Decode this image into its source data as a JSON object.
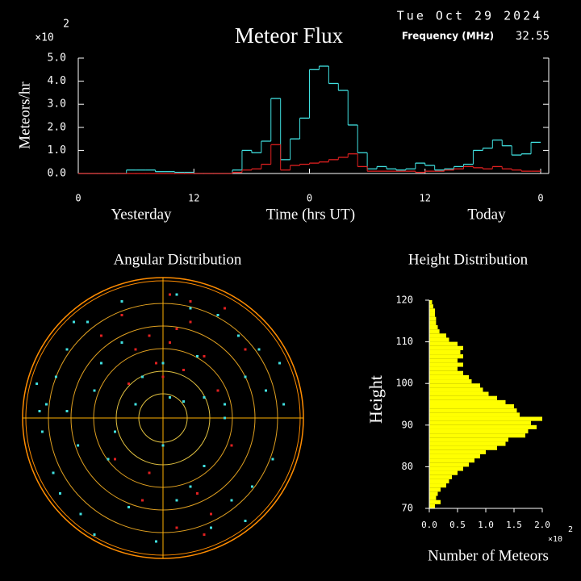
{
  "chart_data": [
    {
      "type": "step",
      "title": "Meteor Flux",
      "date": "Tue Oct 29 2024",
      "frequency_label": "Frequency (MHz)",
      "frequency": 32.55,
      "multiplier": "×10",
      "exponent": 2,
      "y_label": "Meteors/hr",
      "x_label": "Time (hrs UT)",
      "day_labels": [
        "Yesterday",
        "Today"
      ],
      "x": [
        0,
        1,
        2,
        3,
        4,
        5,
        6,
        7,
        8,
        9,
        10,
        11,
        12,
        13,
        14,
        15,
        16,
        17,
        18,
        19,
        20,
        21,
        22,
        23,
        24,
        25,
        26,
        27,
        28,
        29,
        30,
        31,
        32,
        33,
        34,
        35,
        36,
        37,
        38,
        39,
        40,
        41,
        42,
        43,
        44,
        45,
        46,
        47
      ],
      "series": [
        {
          "color": "#40e0e0",
          "values": [
            0,
            0,
            0,
            0,
            0,
            0.15,
            0.15,
            0.15,
            0.08,
            0.08,
            0.05,
            0.05,
            0,
            0,
            0,
            0,
            0.15,
            1.0,
            0.9,
            1.4,
            3.25,
            0.6,
            1.5,
            2.4,
            4.5,
            4.65,
            3.9,
            3.6,
            2.1,
            0.9,
            0.2,
            0.3,
            0.2,
            0.15,
            0.2,
            0.45,
            0.35,
            0.15,
            0.2,
            0.3,
            0.4,
            1.0,
            1.1,
            1.45,
            1.2,
            0.8,
            0.85,
            1.35
          ]
        },
        {
          "color": "#e02020",
          "values": [
            0,
            0,
            0,
            0,
            0,
            0,
            0,
            0,
            0,
            0,
            0,
            0,
            0,
            0,
            0,
            0,
            0.05,
            0.15,
            0.2,
            0.4,
            1.25,
            0.15,
            0.35,
            0.4,
            0.45,
            0.5,
            0.6,
            0.7,
            0.85,
            0.3,
            0.1,
            0.1,
            0.1,
            0.1,
            0.1,
            0.05,
            0.1,
            0.1,
            0.15,
            0.2,
            0.3,
            0.25,
            0.2,
            0.3,
            0.2,
            0.15,
            0.1,
            0.1
          ]
        }
      ],
      "xlim": [
        0,
        48
      ],
      "xticks": [
        0,
        12,
        {
          "value": 24,
          "label": "0"
        },
        {
          "value": 36,
          "label": "12"
        },
        {
          "value": 48,
          "label": "0"
        }
      ],
      "ylim": [
        0,
        5
      ],
      "yticks": [
        {
          "value": 0,
          "label": "0.0"
        },
        {
          "value": 1,
          "label": "1.0"
        },
        {
          "value": 2,
          "label": "2.0"
        },
        {
          "value": 3,
          "label": "3.0"
        },
        {
          "value": 4,
          "label": "4.0"
        },
        {
          "value": 5,
          "label": "5.0"
        }
      ]
    },
    {
      "type": "polar-scatter",
      "title": "Angular Distribution",
      "xlim": [
        -1,
        1
      ],
      "ylim": [
        -1,
        1
      ],
      "series": [
        {
          "color": "#40e0e0",
          "x": [
            -0.85,
            -0.78,
            -0.9,
            -0.7,
            -0.62,
            -0.55,
            -0.8,
            -0.45,
            -0.3,
            -0.2,
            -0.1,
            0.05,
            0.15,
            0.3,
            0.45,
            0.6,
            0.7,
            0.8,
            0.88,
            0.5,
            0.35,
            0.2,
            -0.05,
            -0.25,
            -0.4,
            -0.6,
            -0.75,
            -0.5,
            -0.35,
            0.1,
            0.4,
            0.65,
            0.55,
            0.25,
            -0.15,
            0.0,
            0.3,
            -0.65,
            -0.88,
            -0.92,
            0.75,
            0.6,
            0.1,
            -0.3,
            0.45,
            -0.7,
            0.2,
            0.85,
            -0.5,
            0.0
          ],
          "values": [
            0.1,
            0.3,
            0.05,
            0.5,
            -0.2,
            0.7,
            -0.4,
            0.4,
            0.85,
            0.1,
            0.6,
            0.15,
            0.12,
            0.15,
            0.1,
            0.3,
            0.5,
            -0.3,
            0.1,
            -0.6,
            -0.8,
            -0.5,
            -0.9,
            -0.65,
            -0.3,
            -0.7,
            -0.55,
            0.2,
            -0.1,
            0.9,
            0.75,
            -0.5,
            0.6,
            0.45,
            0.3,
            -0.2,
            -0.35,
            0.7,
            -0.1,
            0.25,
            0.2,
            -0.75,
            -0.6,
            0.55,
            0.0,
            0.05,
            0.8,
            0.4,
            -0.85,
            0.4
          ]
        },
        {
          "color": "#e02020",
          "x": [
            -0.1,
            0.05,
            0.1,
            -0.05,
            0.15,
            0.2,
            -0.2,
            0.3,
            0.45,
            0.6,
            -0.3,
            -0.45,
            0.0,
            0.25,
            0.35,
            -0.15,
            0.1,
            -0.35,
            0.5,
            0.4,
            -0.1,
            0.2,
            0.05,
            -0.25,
            0.3
          ],
          "values": [
            0.6,
            0.55,
            0.65,
            0.4,
            0.35,
            0.7,
            0.5,
            0.45,
            0.8,
            0.5,
            0.75,
            0.6,
            0.3,
            -0.55,
            -0.7,
            -0.6,
            -0.8,
            -0.3,
            -0.2,
            0.2,
            -0.4,
            0.85,
            0.9,
            0.25,
            -0.85
          ]
        }
      ]
    },
    {
      "type": "histogram",
      "title": "Height Distribution",
      "y_label": "Height",
      "x_label": "Number of Meteors",
      "multiplier": "×10",
      "exponent": 2,
      "color": "#ffff00",
      "bins": [
        70,
        71,
        72,
        73,
        74,
        75,
        76,
        77,
        78,
        79,
        80,
        81,
        82,
        83,
        84,
        85,
        86,
        87,
        88,
        89,
        90,
        91,
        92,
        93,
        94,
        95,
        96,
        97,
        98,
        99,
        100,
        101,
        102,
        103,
        104,
        105,
        106,
        107,
        108,
        109,
        110,
        111,
        112,
        113,
        114,
        115,
        116,
        117,
        118,
        119,
        120
      ],
      "values": [
        0.1,
        0.2,
        0.12,
        0.15,
        0.2,
        0.3,
        0.35,
        0.4,
        0.5,
        0.6,
        0.7,
        0.8,
        0.9,
        1.0,
        1.2,
        1.35,
        1.4,
        1.7,
        1.75,
        1.9,
        1.8,
        2.0,
        1.6,
        1.55,
        1.5,
        1.35,
        1.2,
        1.05,
        0.95,
        0.9,
        0.75,
        0.7,
        0.6,
        0.5,
        0.6,
        0.5,
        0.6,
        0.55,
        0.6,
        0.5,
        0.35,
        0.3,
        0.18,
        0.15,
        0.12,
        0.12,
        0.1,
        0.1,
        0.07,
        0.05
      ],
      "xlim": [
        0,
        2
      ],
      "xticks": [
        {
          "value": 0,
          "label": "0.0"
        },
        {
          "value": 0.5,
          "label": "0.5"
        },
        {
          "value": 1,
          "label": "1.0"
        },
        {
          "value": 1.5,
          "label": "1.5"
        },
        {
          "value": 2,
          "label": "2.0"
        }
      ],
      "ylim": [
        70,
        120
      ],
      "yticks": [
        70,
        80,
        90,
        100,
        110,
        120
      ]
    }
  ]
}
